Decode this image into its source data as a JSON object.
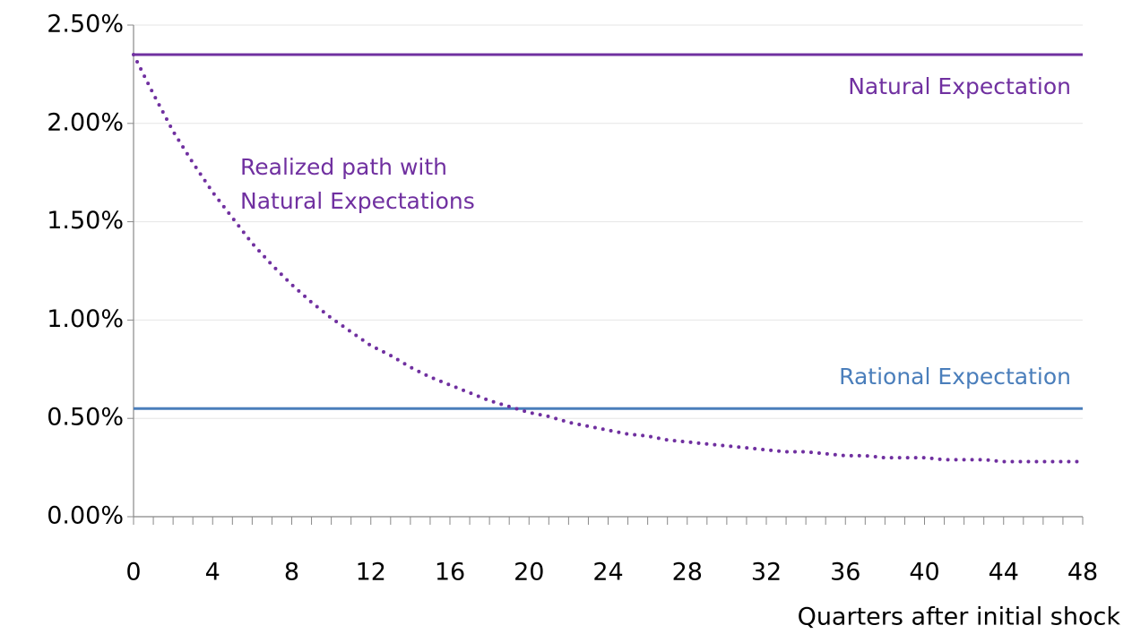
{
  "chart_data": {
    "type": "line",
    "xlabel": "Quarters after initial shock",
    "xlim": [
      0,
      48
    ],
    "xticks": [
      0,
      4,
      8,
      12,
      16,
      20,
      24,
      28,
      32,
      36,
      40,
      44,
      48
    ],
    "xminorticks": [
      0,
      1,
      2,
      3,
      4,
      5,
      6,
      7,
      8,
      9,
      10,
      11,
      12,
      13,
      14,
      15,
      16,
      17,
      18,
      19,
      20,
      21,
      22,
      23,
      24,
      25,
      26,
      27,
      28,
      29,
      30,
      31,
      32,
      33,
      34,
      35,
      36,
      37,
      38,
      39,
      40,
      41,
      42,
      43,
      44,
      45,
      46,
      47,
      48
    ],
    "ylim": [
      0,
      2.5
    ],
    "yticks": [
      {
        "value": 0,
        "label": "0.00%"
      },
      {
        "value": 0.5,
        "label": "0.50%"
      },
      {
        "value": 1,
        "label": "1.00%"
      },
      {
        "value": 1.5,
        "label": "1.50%"
      },
      {
        "value": 2,
        "label": "2.00%"
      },
      {
        "value": 2.5,
        "label": "2.50%"
      }
    ],
    "grid": true,
    "series": [
      {
        "name": "Natural Expectation",
        "color": "#7030a0",
        "style": "solid",
        "x": [
          0,
          48
        ],
        "values": [
          2.35,
          2.35
        ]
      },
      {
        "name": "Rational Expectation",
        "color": "#4a7ebb",
        "style": "solid",
        "x": [
          0,
          48
        ],
        "values": [
          0.55,
          0.55
        ]
      },
      {
        "name": "Realized path with Natural Expectations",
        "color": "#7030a0",
        "style": "dotted",
        "x": [
          0,
          1,
          2,
          3,
          4,
          5,
          6,
          7,
          8,
          9,
          10,
          11,
          12,
          13,
          14,
          15,
          16,
          17,
          18,
          19,
          20,
          21,
          22,
          23,
          24,
          25,
          26,
          27,
          28,
          29,
          30,
          31,
          32,
          33,
          34,
          35,
          36,
          37,
          38,
          39,
          40,
          41,
          42,
          43,
          44,
          45,
          46,
          47,
          48
        ],
        "values": [
          2.35,
          2.15,
          1.96,
          1.8,
          1.65,
          1.52,
          1.39,
          1.28,
          1.18,
          1.09,
          1.01,
          0.94,
          0.87,
          0.82,
          0.76,
          0.71,
          0.67,
          0.63,
          0.59,
          0.56,
          0.53,
          0.51,
          0.48,
          0.46,
          0.44,
          0.42,
          0.41,
          0.39,
          0.38,
          0.37,
          0.36,
          0.35,
          0.34,
          0.33,
          0.33,
          0.32,
          0.31,
          0.31,
          0.3,
          0.3,
          0.3,
          0.29,
          0.29,
          0.29,
          0.28,
          0.28,
          0.28,
          0.28,
          0.28
        ]
      }
    ]
  }
}
